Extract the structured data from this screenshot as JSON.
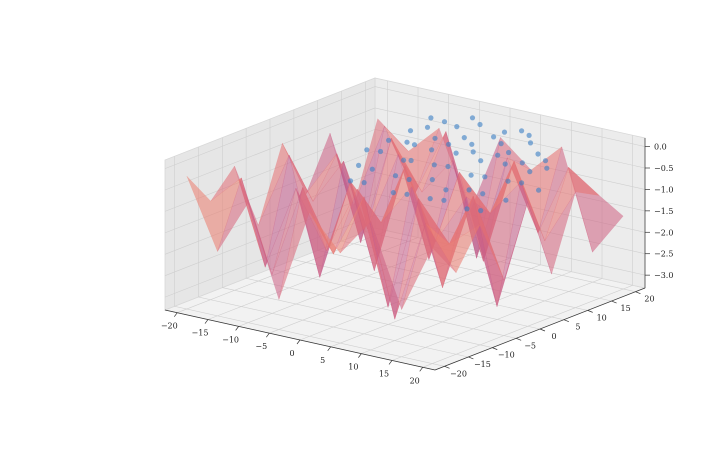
{
  "chart_data": {
    "type": "surface3d",
    "title": "",
    "xlabel": "",
    "ylabel": "",
    "zlabel": "",
    "xlim": [
      -22,
      22
    ],
    "ylim": [
      -22,
      22
    ],
    "zlim": [
      -3.3,
      0.2
    ],
    "grid": true,
    "legend": "none",
    "x_ticks": [
      "−20",
      "−15",
      "−10",
      "−5",
      "0",
      "5",
      "10",
      "15",
      "20"
    ],
    "x_tick_values": [
      -20,
      -15,
      -10,
      -5,
      0,
      5,
      10,
      15,
      20
    ],
    "y_ticks": [
      "−20",
      "−15",
      "−10",
      "−5",
      "0",
      "5",
      "10",
      "15",
      "20"
    ],
    "y_tick_values": [
      -20,
      -15,
      -10,
      -5,
      0,
      5,
      10,
      15,
      20
    ],
    "z_ticks": [
      "0.0",
      "−0.5",
      "−1.0",
      "−1.5",
      "−2.0",
      "−2.5",
      "−3.0"
    ],
    "z_tick_values": [
      0.0,
      -0.5,
      -1.0,
      -1.5,
      -2.0,
      -2.5,
      -3.0
    ],
    "colormap": [
      "#fde0a0",
      "#f6a06a",
      "#e8706f",
      "#c45a8a",
      "#8a4d8f",
      "#5a3a6e",
      "#2f2f4a"
    ],
    "scatter_color": "#3b7fc4",
    "grid_x": [
      -20,
      -15,
      -10,
      -5,
      0,
      5,
      10,
      15,
      20
    ],
    "grid_y": [
      -20,
      -15,
      -10,
      -5,
      0,
      5,
      10,
      15,
      20
    ],
    "surface_z": [
      [
        -0.2,
        -1.8,
        -0.5,
        -2.6,
        -0.4,
        -1.2,
        -0.3,
        -2.2,
        -0.6
      ],
      [
        -1.0,
        -0.3,
        -2.4,
        -0.2,
        -1.6,
        -0.1,
        -2.8,
        -0.4,
        -1.4
      ],
      [
        -0.4,
        -2.6,
        -0.6,
        -1.9,
        -0.3,
        -2.9,
        -0.2,
        -1.1,
        -0.5
      ],
      [
        -2.0,
        -0.2,
        -2.9,
        -0.5,
        -1.3,
        -0.3,
        -2.5,
        -0.2,
        -2.0
      ],
      [
        -0.3,
        -1.5,
        -0.4,
        -2.8,
        -0.2,
        -1.8,
        -0.6,
        -3.0,
        -0.4
      ],
      [
        -1.7,
        -0.6,
        -2.2,
        -0.3,
        -2.6,
        -0.4,
        -1.2,
        -0.3,
        -2.3
      ],
      [
        -0.5,
        -2.9,
        -0.3,
        -1.4,
        -0.5,
        -2.7,
        -0.2,
        -1.9,
        -0.6
      ],
      [
        -2.4,
        -0.4,
        -1.8,
        -0.2,
        -3.0,
        -0.5,
        -2.1,
        -0.4,
        -0.9
      ],
      [
        -0.6,
        -1.2,
        -0.5,
        -2.3,
        -0.4,
        -1.0,
        -0.3,
        -2.6,
        -1.6
      ]
    ],
    "scatter_points": [
      [
        -10,
        14,
        -0.3
      ],
      [
        -8,
        15,
        -0.2
      ],
      [
        -6,
        14,
        -0.35
      ],
      [
        -4,
        16,
        -0.1
      ],
      [
        -2,
        15,
        -0.25
      ],
      [
        0,
        14,
        -0.3
      ],
      [
        2,
        16,
        -0.15
      ],
      [
        4,
        15,
        -0.2
      ],
      [
        6,
        14,
        -0.3
      ],
      [
        8,
        16,
        -0.1
      ],
      [
        10,
        15,
        -0.25
      ],
      [
        12,
        14,
        -0.3
      ],
      [
        -12,
        12,
        -0.5
      ],
      [
        -9,
        12,
        -0.45
      ],
      [
        -7,
        11,
        -0.4
      ],
      [
        -5,
        12,
        -0.5
      ],
      [
        -3,
        13,
        -0.35
      ],
      [
        -1,
        12,
        -0.45
      ],
      [
        1,
        13,
        -0.4
      ],
      [
        3,
        12,
        -0.5
      ],
      [
        5,
        13,
        -0.35
      ],
      [
        7,
        12,
        -0.45
      ],
      [
        9,
        13,
        -0.4
      ],
      [
        11,
        12,
        -0.5
      ],
      [
        13,
        13,
        -0.4
      ],
      [
        -14,
        10,
        -0.7
      ],
      [
        -11,
        9,
        -0.6
      ],
      [
        -8,
        10,
        -0.75
      ],
      [
        -6,
        9,
        -0.65
      ],
      [
        -3,
        10,
        -0.7
      ],
      [
        0,
        9,
        -0.6
      ],
      [
        3,
        10,
        -0.75
      ],
      [
        6,
        9,
        -0.65
      ],
      [
        9,
        10,
        -0.7
      ],
      [
        12,
        9,
        -0.6
      ],
      [
        14,
        10,
        -0.75
      ],
      [
        -13,
        7,
        -0.9
      ],
      [
        -10,
        6,
        -0.85
      ],
      [
        -7,
        7,
        -0.95
      ],
      [
        -4,
        6,
        -0.9
      ],
      [
        -1,
        7,
        -0.85
      ],
      [
        2,
        6,
        -0.95
      ],
      [
        5,
        7,
        -0.9
      ],
      [
        8,
        6,
        -0.85
      ],
      [
        11,
        7,
        -0.95
      ],
      [
        -12,
        4,
        -1.1
      ],
      [
        -9,
        3,
        -1.0
      ],
      [
        -5,
        4,
        -1.15
      ],
      [
        -2,
        3,
        -1.05
      ],
      [
        1,
        4,
        -1.1
      ],
      [
        4,
        3,
        -1.0
      ],
      [
        7,
        4,
        -1.15
      ],
      [
        10,
        3,
        -1.05
      ],
      [
        -6,
        16,
        -0.05
      ],
      [
        -1,
        17,
        0.0
      ],
      [
        3,
        17,
        -0.05
      ],
      [
        7,
        17,
        0.0
      ],
      [
        -9,
        17,
        -0.1
      ],
      [
        -3,
        18,
        0.05
      ],
      [
        5,
        18,
        0.0
      ]
    ]
  }
}
